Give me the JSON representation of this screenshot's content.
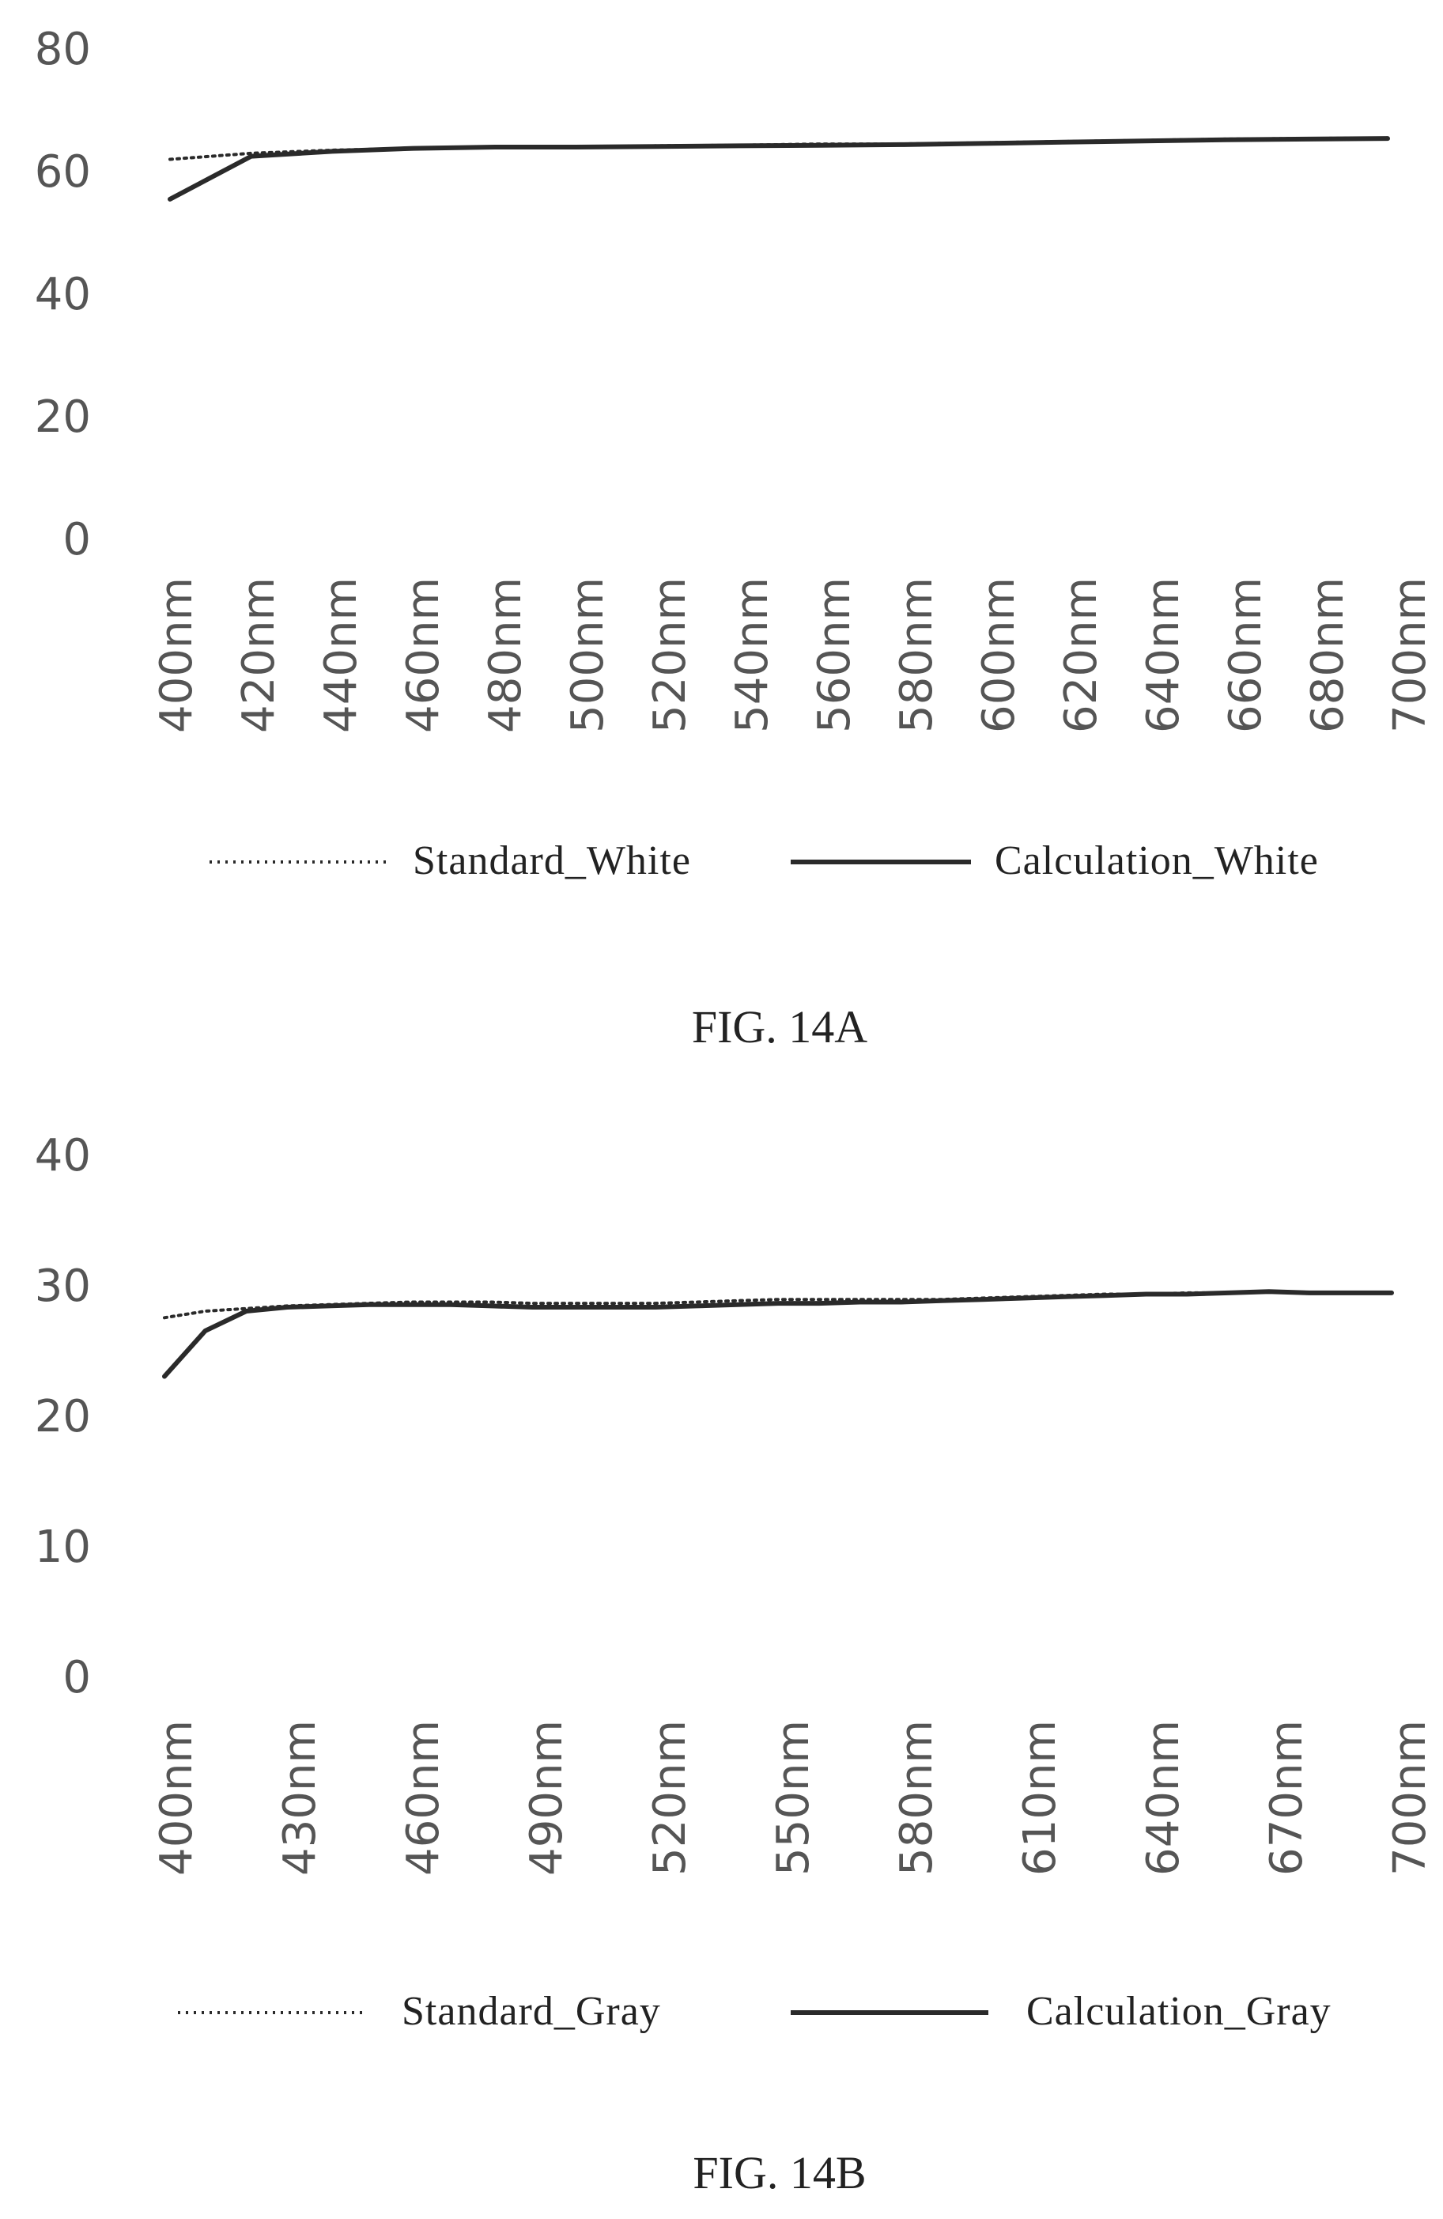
{
  "colors": {
    "background": "#ffffff",
    "line": "#2a2a2a",
    "tick_text": "#555555"
  },
  "chart_data": [
    {
      "type": "line",
      "caption": "FIG. 14A",
      "ylim": [
        0,
        80
      ],
      "y_ticks": [
        "80",
        "60",
        "40",
        "20",
        "0"
      ],
      "grid": false,
      "legend_position": "bottom",
      "x": [
        400,
        420,
        440,
        460,
        480,
        500,
        520,
        540,
        560,
        580,
        600,
        620,
        640,
        660,
        680,
        700
      ],
      "categories": [
        "400nm",
        "420nm",
        "440nm",
        "460nm",
        "480nm",
        "500nm",
        "520nm",
        "540nm",
        "560nm",
        "580nm",
        "600nm",
        "620nm",
        "640nm",
        "660nm",
        "680nm",
        "700nm"
      ],
      "series": [
        {
          "name": "Standard_White",
          "style": "dotted",
          "values": [
            62,
            63,
            63.5,
            63.8,
            64,
            64,
            64.2,
            64.3,
            64.5,
            64.5,
            64.7,
            64.9,
            65.1,
            65.3,
            65.4,
            65.5
          ]
        },
        {
          "name": "Calculation_White",
          "style": "solid",
          "values": [
            55.5,
            62.5,
            63.3,
            63.8,
            64,
            64,
            64.1,
            64.2,
            64.3,
            64.4,
            64.6,
            64.8,
            65,
            65.2,
            65.3,
            65.4
          ]
        }
      ]
    },
    {
      "type": "line",
      "caption": "FIG. 14B",
      "ylim": [
        0,
        40
      ],
      "y_ticks": [
        "40",
        "30",
        "20",
        "10",
        "0"
      ],
      "grid": false,
      "legend_position": "bottom",
      "x": [
        400,
        410,
        420,
        430,
        440,
        450,
        460,
        470,
        480,
        490,
        500,
        510,
        520,
        530,
        540,
        550,
        560,
        570,
        580,
        590,
        600,
        610,
        620,
        630,
        640,
        650,
        660,
        670,
        680,
        690,
        700
      ],
      "categories": [
        "400nm",
        "430nm",
        "460nm",
        "490nm",
        "520nm",
        "550nm",
        "580nm",
        "610nm",
        "640nm",
        "670nm",
        "700nm"
      ],
      "series": [
        {
          "name": "Standard_Gray",
          "style": "dotted",
          "values": [
            27.5,
            28,
            28.2,
            28.4,
            28.5,
            28.6,
            28.7,
            28.7,
            28.7,
            28.6,
            28.6,
            28.6,
            28.6,
            28.7,
            28.8,
            28.9,
            28.9,
            28.9,
            28.9,
            28.9,
            29,
            29.1,
            29.2,
            29.3,
            29.3,
            29.4,
            29.4,
            29.5,
            29.4,
            29.4,
            29.4
          ]
        },
        {
          "name": "Calculation_Gray",
          "style": "solid",
          "values": [
            23,
            26.5,
            28,
            28.3,
            28.4,
            28.5,
            28.5,
            28.5,
            28.4,
            28.3,
            28.3,
            28.3,
            28.3,
            28.4,
            28.5,
            28.6,
            28.6,
            28.7,
            28.7,
            28.8,
            28.9,
            29,
            29.1,
            29.2,
            29.3,
            29.3,
            29.4,
            29.5,
            29.4,
            29.4,
            29.4
          ]
        }
      ]
    }
  ]
}
